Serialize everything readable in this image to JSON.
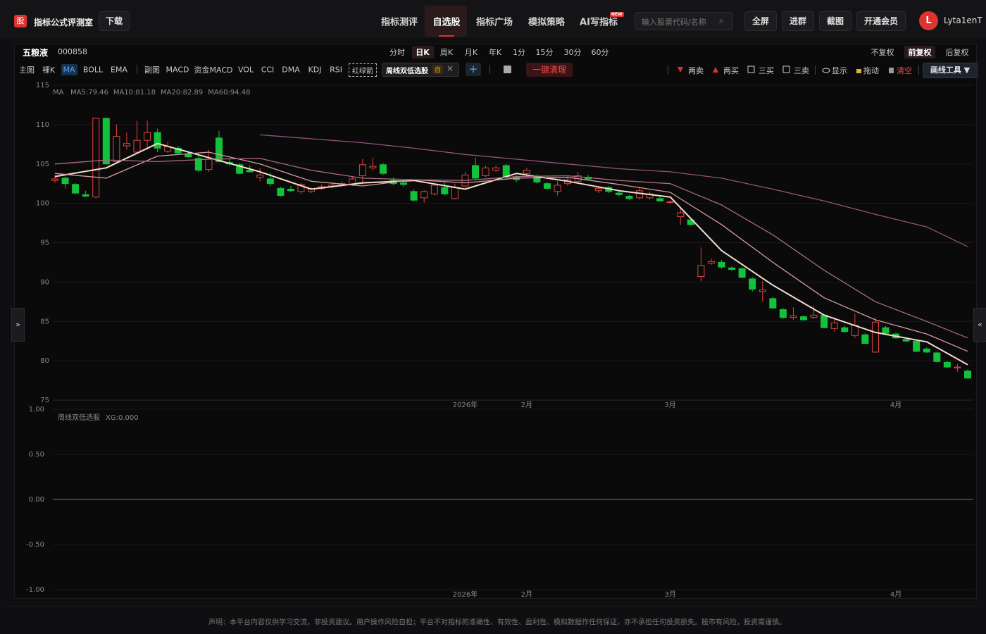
{
  "header": {
    "logo": "股",
    "title": "指标公式评测室",
    "download": "下载",
    "nav": [
      "指标测评",
      "自选股",
      "指标广场",
      "模拟策略",
      "AI写指标"
    ],
    "nav_badge": "NEW",
    "search_placeholder": "输入股票代码/名称",
    "buttons": [
      "全屏",
      "进群",
      "截图",
      "开通会员"
    ],
    "avatar": "L",
    "user": "Lyta1enT"
  },
  "stock": {
    "name": "五粮液",
    "code": "000858",
    "periods": [
      "分时",
      "日K",
      "周K",
      "月K",
      "年K",
      "1分",
      "15分",
      "30分",
      "60分"
    ],
    "adjust": [
      "不复权",
      "前复权",
      "后复权"
    ]
  },
  "toolbar": {
    "main": "主图",
    "main_items": [
      "裸K",
      "MA",
      "BOLL",
      "EMA"
    ],
    "sub": "副图",
    "sub_items": [
      "MACD",
      "资金MACD",
      "VOL",
      "CCI",
      "DMA",
      "KDJ",
      "RSI"
    ],
    "arrow_item": "红绿箭",
    "formula": "周线双低选股",
    "formula_tag": "自",
    "clear_all": "一键清理",
    "tools": [
      "两卖",
      "两买",
      "三买",
      "三卖",
      "显示",
      "拖动",
      "清空"
    ],
    "draw_tools": "画线工具 ▼"
  },
  "chart_data": {
    "type": "candlestick",
    "legend_title": "MA",
    "ma_labels": [
      "MA5:79.46",
      "MA10:81.18",
      "MA20:82.89",
      "MA60:94.48"
    ],
    "ylim": [
      75,
      115
    ],
    "yticks": [
      75,
      80,
      85,
      90,
      95,
      100,
      105,
      110,
      115
    ],
    "categories": [
      null,
      null,
      null,
      null,
      null,
      null,
      null,
      null,
      null,
      null,
      null,
      null,
      null,
      null,
      null,
      null,
      null,
      null,
      null,
      null,
      null,
      null,
      null,
      null,
      null,
      null,
      null,
      null,
      null,
      null,
      null,
      null,
      null,
      null,
      null,
      null,
      null,
      null,
      null,
      null,
      "2026年",
      null,
      null,
      null,
      null,
      null,
      "2月",
      null,
      null,
      null,
      null,
      null,
      null,
      null,
      null,
      null,
      null,
      null,
      null,
      null,
      "3月",
      null,
      null,
      null,
      null,
      null,
      null,
      null,
      null,
      null,
      null,
      null,
      null,
      null,
      null,
      null,
      null,
      null,
      null,
      null,
      null,
      null,
      "4月",
      null,
      null,
      null,
      null,
      null,
      null,
      null
    ],
    "up_color": "#e0453a",
    "down_color": "#12c23a",
    "ohlc": [
      [
        102.9,
        103.6,
        102.6,
        103.1
      ],
      [
        103.2,
        103.4,
        101.9,
        102.5
      ],
      [
        102.4,
        102.6,
        101.2,
        101.3
      ],
      [
        101.1,
        101.6,
        100.8,
        100.9
      ],
      [
        100.8,
        110.8,
        100.6,
        110.8
      ],
      [
        110.8,
        110.8,
        105.0,
        105.0
      ],
      [
        105.3,
        110.0,
        105.0,
        108.5
      ],
      [
        107.3,
        109.0,
        106.8,
        107.6
      ],
      [
        106.5,
        110.5,
        106.3,
        108.0
      ],
      [
        108.0,
        110.5,
        106.8,
        109.0
      ],
      [
        109.0,
        109.5,
        106.5,
        107.0
      ],
      [
        106.6,
        107.8,
        106.4,
        107.2
      ],
      [
        107.0,
        107.3,
        106.2,
        106.4
      ],
      [
        106.2,
        106.6,
        105.8,
        105.9
      ],
      [
        105.7,
        106.0,
        104.0,
        104.2
      ],
      [
        104.3,
        106.8,
        104.0,
        105.6
      ],
      [
        108.3,
        109.2,
        105.2,
        105.3
      ],
      [
        105.2,
        105.6,
        104.8,
        105.0
      ],
      [
        104.9,
        105.1,
        103.7,
        103.8
      ],
      [
        104.2,
        104.8,
        103.9,
        104.0
      ],
      [
        103.3,
        104.5,
        102.8,
        103.6
      ],
      [
        103.1,
        103.9,
        102.2,
        102.5
      ],
      [
        101.9,
        102.1,
        100.8,
        101.0
      ],
      [
        101.8,
        102.2,
        101.4,
        101.6
      ],
      [
        101.5,
        102.6,
        101.2,
        102.4
      ],
      [
        101.5,
        102.0,
        101.3,
        101.8
      ],
      [
        101.9,
        102.4,
        101.7,
        102.1
      ],
      [
        102.1,
        102.5,
        101.9,
        102.3
      ],
      [
        102.3,
        102.8,
        102.1,
        102.5
      ],
      [
        102.4,
        103.4,
        102.2,
        103.1
      ],
      [
        103.5,
        105.6,
        102.4,
        104.9
      ],
      [
        104.5,
        105.8,
        104.2,
        104.7
      ],
      [
        104.9,
        105.1,
        103.6,
        103.8
      ],
      [
        102.9,
        103.3,
        102.3,
        102.5
      ],
      [
        102.6,
        102.8,
        102.1,
        102.4
      ],
      [
        101.5,
        101.8,
        100.2,
        100.4
      ],
      [
        100.7,
        101.7,
        100.1,
        101.5
      ],
      [
        101.2,
        102.5,
        101.0,
        102.3
      ],
      [
        102.0,
        102.6,
        101.0,
        101.2
      ],
      [
        100.6,
        102.5,
        100.5,
        102.0
      ],
      [
        102.2,
        104.0,
        102.0,
        103.6
      ],
      [
        104.8,
        105.8,
        103.0,
        103.2
      ],
      [
        103.5,
        104.8,
        103.3,
        104.5
      ],
      [
        104.2,
        104.8,
        104.0,
        104.5
      ],
      [
        104.8,
        105.0,
        103.1,
        103.3
      ],
      [
        103.3,
        103.6,
        102.7,
        103.0
      ],
      [
        103.8,
        104.5,
        103.6,
        104.2
      ],
      [
        103.4,
        103.7,
        102.5,
        102.7
      ],
      [
        102.5,
        102.7,
        101.7,
        101.9
      ],
      [
        101.5,
        102.8,
        101.0,
        102.3
      ],
      [
        102.5,
        103.5,
        102.2,
        103.0
      ],
      [
        102.8,
        104.0,
        102.6,
        103.5
      ],
      [
        103.3,
        103.6,
        103.0,
        103.1
      ],
      [
        101.6,
        102.2,
        101.3,
        101.9
      ],
      [
        102.0,
        102.2,
        101.3,
        101.5
      ],
      [
        101.3,
        101.6,
        100.9,
        101.1
      ],
      [
        100.9,
        101.1,
        100.4,
        100.6
      ],
      [
        100.7,
        102.1,
        100.5,
        101.6
      ],
      [
        100.7,
        101.5,
        100.5,
        101.2
      ],
      [
        100.6,
        100.8,
        100.2,
        100.3
      ],
      [
        100.1,
        100.4,
        99.9,
        100.2
      ],
      [
        98.3,
        99.4,
        97.3,
        98.8
      ],
      [
        97.9,
        98.2,
        97.2,
        97.3
      ],
      [
        90.7,
        94.4,
        90.1,
        92.1
      ],
      [
        92.4,
        93.0,
        92.2,
        92.6
      ],
      [
        92.5,
        92.8,
        91.7,
        91.9
      ],
      [
        91.8,
        92.0,
        91.4,
        91.6
      ],
      [
        91.7,
        91.9,
        90.5,
        90.6
      ],
      [
        90.4,
        90.6,
        88.8,
        89.1
      ],
      [
        88.8,
        90.1,
        87.5,
        89.0
      ],
      [
        87.9,
        88.1,
        86.6,
        86.7
      ],
      [
        86.5,
        86.7,
        85.3,
        85.5
      ],
      [
        85.5,
        86.8,
        85.2,
        85.7
      ],
      [
        85.6,
        85.8,
        85.1,
        85.2
      ],
      [
        85.5,
        87.0,
        85.3,
        85.8
      ],
      [
        85.8,
        85.9,
        84.1,
        84.2
      ],
      [
        84.1,
        85.5,
        83.7,
        84.8
      ],
      [
        84.2,
        84.5,
        83.6,
        83.7
      ],
      [
        83.2,
        86.0,
        82.9,
        84.5
      ],
      [
        83.3,
        83.5,
        82.1,
        82.2
      ],
      [
        81.1,
        85.5,
        81.0,
        84.9
      ],
      [
        84.2,
        84.4,
        83.4,
        83.5
      ],
      [
        83.4,
        83.6,
        82.8,
        82.9
      ],
      [
        82.7,
        82.9,
        82.4,
        82.5
      ],
      [
        82.5,
        82.7,
        81.1,
        81.2
      ],
      [
        81.5,
        81.7,
        81.0,
        81.1
      ],
      [
        81.0,
        81.2,
        79.8,
        79.9
      ],
      [
        79.8,
        80.0,
        79.1,
        79.2
      ],
      [
        79.1,
        79.6,
        78.6,
        79.2
      ],
      [
        78.7,
        78.9,
        77.7,
        77.8
      ]
    ],
    "ma_index": [
      0,
      5,
      10,
      15,
      20,
      25,
      30,
      35,
      40,
      45,
      50,
      55,
      60,
      65,
      70,
      75,
      80,
      85,
      89
    ],
    "ma_series": [
      {
        "color": "#f3dccb",
        "label_color": "#f3dccb",
        "values": [
          103.4,
          104.5,
          107.6,
          105.8,
          104.0,
          101.8,
          102.6,
          102.9,
          101.8,
          103.8,
          102.8,
          101.6,
          100.8,
          94.0,
          89.6,
          85.8,
          83.6,
          82.4,
          79.5
        ]
      },
      {
        "color": "#d89aa0",
        "label_color": "#f0b8c0",
        "values": [
          103.8,
          103.2,
          106.0,
          106.5,
          105.0,
          102.8,
          102.2,
          103.0,
          102.6,
          103.2,
          103.3,
          102.4,
          101.4,
          97.3,
          92.5,
          88.0,
          85.2,
          83.4,
          81.2
        ]
      },
      {
        "color": "#a86c80",
        "label_color": "#e890b8",
        "values": [
          105.0,
          105.5,
          105.3,
          105.6,
          105.7,
          104.2,
          103.2,
          103.0,
          102.9,
          103.4,
          103.5,
          102.9,
          102.5,
          99.8,
          96.0,
          91.5,
          87.5,
          85.0,
          82.9
        ]
      },
      {
        "color": "#94527e",
        "label_color": "#e070b0",
        "values": [
          null,
          null,
          null,
          null,
          108.7,
          108.2,
          107.7,
          107.0,
          106.2,
          105.6,
          105.0,
          104.4,
          104.0,
          103.2,
          101.8,
          100.3,
          98.6,
          97.0,
          94.5
        ]
      }
    ],
    "sub_chart": {
      "legend": "周线双低选股",
      "xg_label": "XG:0.000",
      "xg_value": 0,
      "ylim": [
        -1,
        1
      ],
      "yticks": [
        {
          "value": -1,
          "label": "-1.00"
        },
        {
          "value": -0.5,
          "label": "-0.50"
        },
        {
          "value": 0,
          "label": "0.00"
        },
        {
          "value": 0.5,
          "label": "0.50"
        },
        {
          "value": 1,
          "label": "1.00"
        }
      ]
    }
  },
  "footer": {
    "disclaimer": "声明：本平台内容仅供学习交流，非投资建议。用户操作风险自担；平台不对指标的准确性、有效性、盈利性、模拟数据作任何保证，亦不承担任何投资损失。股市有风险，投资需谨慎。"
  }
}
